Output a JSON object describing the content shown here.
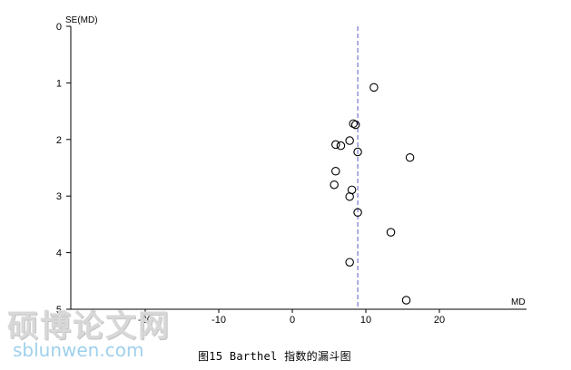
{
  "chart_data": {
    "type": "scatter",
    "subtype": "funnel plot",
    "title": "",
    "caption": "图15 Barthel 指数的漏斗图",
    "xlabel": "MD",
    "ylabel": "SE(MD)",
    "xlim": [
      -40,
      32
    ],
    "ylim": [
      0,
      5
    ],
    "y_inverted": true,
    "xticks": [
      -20,
      -10,
      0,
      10,
      20
    ],
    "yticks": [
      0,
      1,
      2,
      3,
      4,
      5
    ],
    "summary_line_x": 8.9,
    "points": [
      {
        "x": 11.1,
        "y": 1.08
      },
      {
        "x": 8.3,
        "y": 1.72
      },
      {
        "x": 8.6,
        "y": 1.74
      },
      {
        "x": 7.8,
        "y": 2.02
      },
      {
        "x": 5.9,
        "y": 2.09
      },
      {
        "x": 6.6,
        "y": 2.11
      },
      {
        "x": 8.9,
        "y": 2.22
      },
      {
        "x": 16.0,
        "y": 2.32
      },
      {
        "x": 5.9,
        "y": 2.56
      },
      {
        "x": 5.7,
        "y": 2.8
      },
      {
        "x": 8.1,
        "y": 2.89
      },
      {
        "x": 7.8,
        "y": 3.01
      },
      {
        "x": 8.9,
        "y": 3.29
      },
      {
        "x": 13.4,
        "y": 3.64
      },
      {
        "x": 7.8,
        "y": 4.17
      },
      {
        "x": 15.5,
        "y": 4.84
      }
    ]
  },
  "watermark": {
    "chinese": "硕博论文网",
    "url": "sblunwen.com"
  },
  "colors": {
    "axis": "#000000",
    "summary_line": "#5a5ac8",
    "marker": "#000000"
  }
}
